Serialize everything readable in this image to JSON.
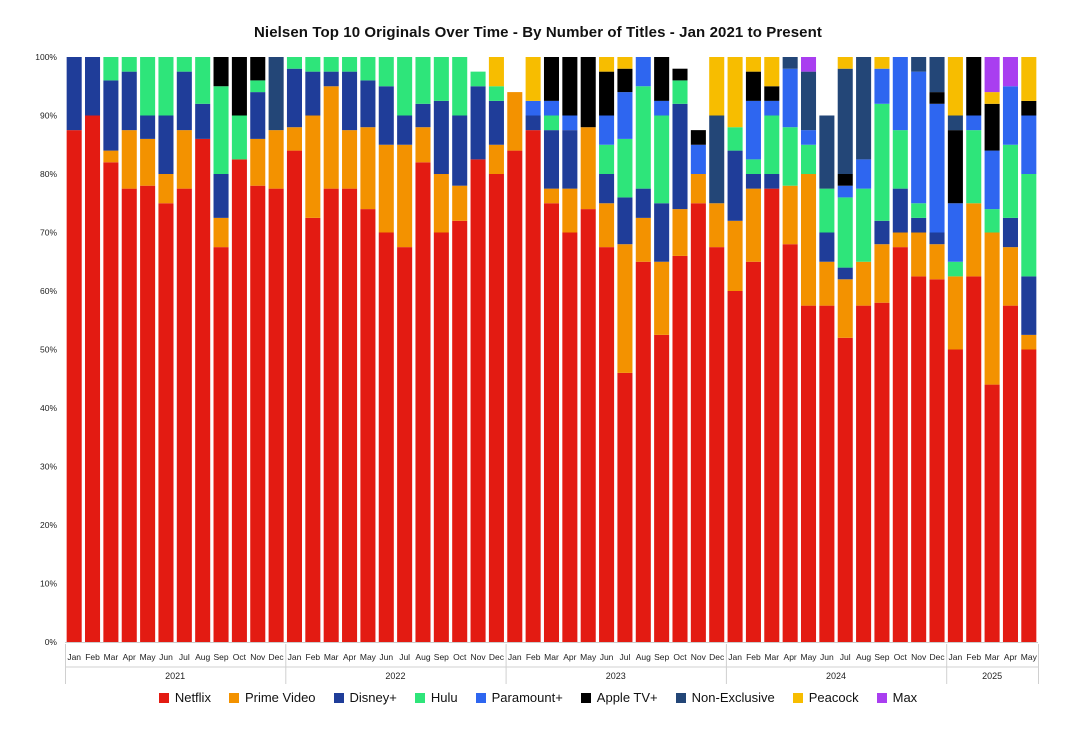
{
  "chart_data": {
    "type": "bar",
    "stacked": true,
    "title": "Nielsen Top 10 Originals Over Time - By Number of Titles - Jan 2021 to Present",
    "ylim": [
      0,
      100
    ],
    "y_ticks": [
      "0%",
      "10%",
      "20%",
      "30%",
      "40%",
      "50%",
      "60%",
      "70%",
      "80%",
      "90%",
      "100%"
    ],
    "grid": false,
    "legend_position": "bottom",
    "categories": [
      "Jan",
      "Feb",
      "Mar",
      "Apr",
      "May",
      "Jun",
      "Jul",
      "Aug",
      "Sep",
      "Oct",
      "Nov",
      "Dec",
      "Jan",
      "Feb",
      "Mar",
      "Apr",
      "May",
      "Jun",
      "Jul",
      "Aug",
      "Sep",
      "Oct",
      "Nov",
      "Dec",
      "Jan",
      "Feb",
      "Mar",
      "Apr",
      "May",
      "Jun",
      "Jul",
      "Aug",
      "Sep",
      "Oct",
      "Nov",
      "Dec",
      "Jan",
      "Feb",
      "Mar",
      "Apr",
      "May",
      "Jun",
      "Jul",
      "Aug",
      "Sep",
      "Oct",
      "Nov",
      "Dec",
      "Jan",
      "Feb",
      "Mar",
      "Apr",
      "May"
    ],
    "year_groups": [
      {
        "label": "2021",
        "count": 12
      },
      {
        "label": "2022",
        "count": 12
      },
      {
        "label": "2023",
        "count": 12
      },
      {
        "label": "2024",
        "count": 12
      },
      {
        "label": "2025",
        "count": 5
      }
    ],
    "series": [
      {
        "name": "Netflix",
        "color": "#e31b12",
        "values": [
          87.5,
          90,
          82,
          77.5,
          78,
          75,
          77.5,
          86,
          67.5,
          82.5,
          78,
          77.5,
          84,
          72.5,
          77.5,
          77.5,
          74,
          70,
          67.5,
          82,
          70,
          72,
          82.5,
          80,
          84,
          87.5,
          75,
          70,
          74,
          67.5,
          46,
          65,
          52.5,
          66,
          75,
          67.5,
          60,
          65,
          77.5,
          68,
          57.5,
          57.5,
          52,
          57.5,
          58,
          67.5,
          62.5,
          62,
          50,
          62.5,
          44,
          57.5,
          50
        ]
      },
      {
        "name": "Prime Video",
        "color": "#f39200",
        "values": [
          0,
          0,
          2,
          10,
          8,
          5,
          10,
          0,
          5,
          0,
          8,
          10,
          4,
          17.5,
          17.5,
          10,
          14,
          15,
          17.5,
          6,
          10,
          6,
          0,
          5,
          10,
          0,
          2.5,
          7.5,
          14,
          7.5,
          22,
          7.5,
          12.5,
          8,
          5,
          7.5,
          12,
          12.5,
          0,
          10,
          22.5,
          7.5,
          10,
          7.5,
          10,
          2.5,
          7.5,
          6,
          12.5,
          12.5,
          26,
          10,
          2.5
        ]
      },
      {
        "name": "Disney+",
        "color": "#1f3d99",
        "values": [
          12.5,
          10,
          12,
          10,
          4,
          10,
          10,
          6,
          7.5,
          0,
          8,
          0,
          10,
          7.5,
          2.5,
          10,
          8,
          10,
          5,
          4,
          12.5,
          12,
          12.5,
          7.5,
          0,
          2.5,
          10,
          10,
          0,
          5,
          8,
          5,
          10,
          18,
          0,
          0,
          12,
          2.5,
          2.5,
          0,
          0,
          5,
          2,
          0,
          4,
          7.5,
          2.5,
          2,
          0,
          0,
          0,
          5,
          10
        ]
      },
      {
        "name": "Hulu",
        "color": "#2ee57a",
        "values": [
          0,
          0,
          4,
          2.5,
          10,
          10,
          2.5,
          8,
          15,
          7.5,
          2,
          0,
          2,
          2.5,
          2.5,
          2.5,
          4,
          5,
          10,
          8,
          7.5,
          10,
          2.5,
          2.5,
          0,
          0,
          2.5,
          0,
          0,
          5,
          10,
          17.5,
          15,
          4,
          0,
          0,
          4,
          2.5,
          10,
          10,
          5,
          7.5,
          12,
          12.5,
          20,
          10,
          2.5,
          0,
          2.5,
          12.5,
          4,
          12.5,
          17.5
        ]
      },
      {
        "name": "Paramount+",
        "color": "#2e66f0",
        "values": [
          0,
          0,
          0,
          0,
          0,
          0,
          0,
          0,
          0,
          0,
          0,
          0,
          0,
          0,
          0,
          0,
          0,
          0,
          0,
          0,
          0,
          0,
          0,
          0,
          0,
          2.5,
          2.5,
          2.5,
          0,
          5,
          8,
          5,
          2.5,
          0,
          5,
          0,
          0,
          10,
          2.5,
          10,
          2.5,
          0,
          2,
          5,
          6,
          12.5,
          22.5,
          22,
          10,
          2.5,
          10,
          10,
          10
        ]
      },
      {
        "name": "Apple TV+",
        "color": "#000000",
        "values": [
          0,
          0,
          0,
          0,
          0,
          0,
          0,
          0,
          5,
          10,
          4,
          0,
          0,
          0,
          0,
          0,
          0,
          0,
          0,
          0,
          0,
          0,
          0,
          0,
          0,
          0,
          7.5,
          10,
          12,
          7.5,
          4,
          0,
          7.5,
          2,
          2.5,
          0,
          0,
          5,
          2.5,
          0,
          0,
          0,
          2,
          0,
          0,
          0,
          0,
          2,
          12.5,
          10,
          8,
          0,
          2.5
        ]
      },
      {
        "name": "Non-Exclusive",
        "color": "#234677",
        "values": [
          0,
          0,
          0,
          0,
          0,
          0,
          0,
          0,
          0,
          0,
          0,
          12.5,
          0,
          0,
          0,
          0,
          0,
          0,
          0,
          0,
          0,
          0,
          0,
          0,
          0,
          0,
          0,
          0,
          0,
          0,
          0,
          0,
          0,
          0,
          0,
          15,
          0,
          0,
          0,
          2,
          10,
          12.5,
          18,
          17.5,
          0,
          0,
          2.5,
          6,
          2.5,
          0,
          0,
          0,
          0
        ]
      },
      {
        "name": "Peacock",
        "color": "#f7bd00",
        "values": [
          0,
          0,
          0,
          0,
          0,
          0,
          0,
          0,
          0,
          0,
          0,
          0,
          0,
          0,
          0,
          0,
          0,
          0,
          0,
          0,
          0,
          0,
          0,
          5,
          0,
          7.5,
          0,
          0,
          0,
          2.5,
          2,
          0,
          0,
          0,
          0,
          10,
          12,
          2.5,
          5,
          0,
          0,
          0,
          2,
          0,
          2,
          0,
          0,
          0,
          10,
          0,
          2,
          0,
          7.5
        ]
      },
      {
        "name": "Max",
        "color": "#a93ef0",
        "values": [
          0,
          0,
          0,
          0,
          0,
          0,
          0,
          0,
          0,
          0,
          0,
          0,
          0,
          0,
          0,
          0,
          0,
          0,
          0,
          0,
          0,
          0,
          0,
          0,
          0,
          0,
          0,
          0,
          0,
          0,
          0,
          0,
          0,
          0,
          0,
          0,
          0,
          0,
          0,
          0,
          2.5,
          0,
          0,
          0,
          0,
          0,
          0,
          0,
          0,
          0,
          6,
          5,
          0
        ]
      }
    ]
  }
}
